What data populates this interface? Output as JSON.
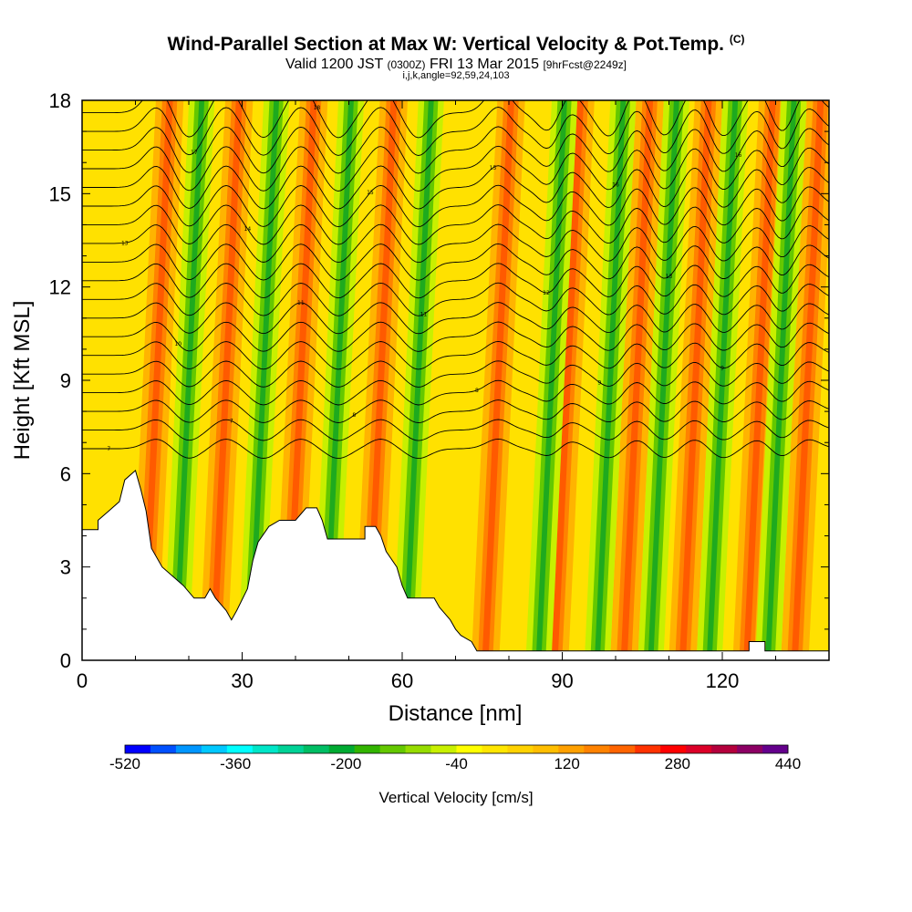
{
  "header": {
    "title": "Wind-Parallel Section at Max W: Vertical Velocity & Pot.Temp.",
    "copyright": "(C)",
    "valid_prefix": "Valid 1200 JST",
    "valid_utc": "(0300Z)",
    "valid_date": "FRI 13 Mar 2015",
    "forecast": "[9hrFcst@2249z]",
    "indices": "i,j,k,angle=92,59,24,103"
  },
  "chart_data": {
    "type": "heatmap",
    "xlabel": "Distance [nm]",
    "ylabel": "Height [Kft MSL]",
    "xlim": [
      0,
      140
    ],
    "ylim": [
      0,
      18
    ],
    "x_ticks": [
      "0",
      "30",
      "60",
      "90",
      "120"
    ],
    "x_tick_values": [
      0,
      30,
      60,
      90,
      120
    ],
    "y_ticks": [
      "0",
      "3",
      "6",
      "9",
      "12",
      "15",
      "18"
    ],
    "y_tick_values": [
      0,
      3,
      6,
      9,
      12,
      15,
      18
    ],
    "colorbar": {
      "title": "Vertical Velocity [cm/s]",
      "labels": [
        "-520",
        "-360",
        "-200",
        "-40",
        "120",
        "280",
        "440"
      ],
      "range": [
        -520,
        440
      ],
      "colors": [
        "#0000ff",
        "#0050ff",
        "#0096ff",
        "#00c8ff",
        "#00ffff",
        "#00e6c8",
        "#00d296",
        "#00be64",
        "#00aa32",
        "#32b400",
        "#64c800",
        "#96dc00",
        "#c8f000",
        "#ffff00",
        "#ffe600",
        "#ffd200",
        "#ffbe00",
        "#ffa000",
        "#ff8200",
        "#ff6400",
        "#ff3200",
        "#ff0000",
        "#dc0028",
        "#b4003c",
        "#8c0064",
        "#64008c"
      ]
    },
    "updraft_bands_nm": [
      14,
      27,
      41,
      56,
      78,
      91,
      104,
      115,
      127,
      136
    ],
    "downdraft_bands_nm": [
      20,
      34,
      48,
      63,
      88,
      99,
      109,
      120,
      131
    ],
    "terrain_kft": [
      [
        0,
        4.2
      ],
      [
        3,
        4.2
      ],
      [
        3,
        4.5
      ],
      [
        5,
        4.8
      ],
      [
        7,
        5.1
      ],
      [
        8,
        5.8
      ],
      [
        10,
        6.1
      ],
      [
        11,
        5.5
      ],
      [
        12,
        4.8
      ],
      [
        13,
        3.6
      ],
      [
        15,
        3.0
      ],
      [
        17,
        2.7
      ],
      [
        19,
        2.4
      ],
      [
        21,
        2.0
      ],
      [
        23,
        2.0
      ],
      [
        24,
        2.3
      ],
      [
        25,
        2.0
      ],
      [
        27,
        1.6
      ],
      [
        28,
        1.3
      ],
      [
        29,
        1.6
      ],
      [
        31,
        2.3
      ],
      [
        32,
        3.2
      ],
      [
        33,
        3.8
      ],
      [
        35,
        4.3
      ],
      [
        37,
        4.5
      ],
      [
        40,
        4.5
      ],
      [
        42,
        4.9
      ],
      [
        44,
        4.9
      ],
      [
        45,
        4.5
      ],
      [
        46,
        3.9
      ],
      [
        53,
        3.9
      ],
      [
        53,
        4.3
      ],
      [
        55,
        4.3
      ],
      [
        56,
        4.0
      ],
      [
        57,
        3.5
      ],
      [
        59,
        3.0
      ],
      [
        60,
        2.4
      ],
      [
        61,
        2.0
      ],
      [
        66,
        2.0
      ],
      [
        67,
        1.7
      ],
      [
        68,
        1.5
      ],
      [
        69,
        1.3
      ],
      [
        70,
        1.0
      ],
      [
        71,
        0.8
      ],
      [
        73,
        0.6
      ],
      [
        74,
        0.3
      ],
      [
        125,
        0.3
      ],
      [
        125,
        0.6
      ],
      [
        128,
        0.6
      ],
      [
        128,
        0.3
      ],
      [
        140,
        0.3
      ]
    ],
    "theta_contours": [
      {
        "label": "7",
        "base": 6.8
      },
      {
        "label": "7",
        "base": 7.4
      },
      {
        "label": "8",
        "base": 8.0
      },
      {
        "label": "8",
        "base": 8.6
      },
      {
        "label": "9",
        "base": 9.2
      },
      {
        "label": "9",
        "base": 9.8
      },
      {
        "label": "10",
        "base": 10.4
      },
      {
        "label": "11",
        "base": 11.0
      },
      {
        "label": "11",
        "base": 11.6
      },
      {
        "label": "12",
        "base": 12.2
      },
      {
        "label": "13",
        "base": 12.8
      },
      {
        "label": "13",
        "base": 13.4
      },
      {
        "label": "14",
        "base": 14.0
      },
      {
        "label": "15",
        "base": 14.6
      },
      {
        "label": "15",
        "base": 15.2
      },
      {
        "label": "16",
        "base": 15.8
      },
      {
        "label": "16",
        "base": 16.4
      },
      {
        "label": "17",
        "base": 17.0
      },
      {
        "label": "18",
        "base": 17.6
      }
    ]
  }
}
